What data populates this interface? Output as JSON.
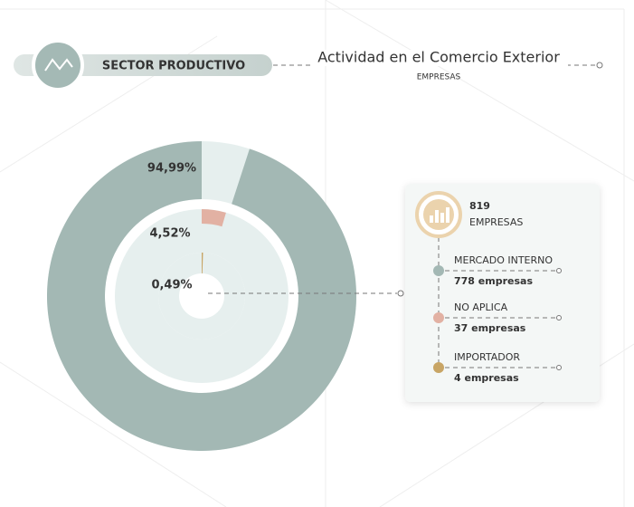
{
  "header": {
    "section": "SECTOR PRODUCTIVO",
    "title": "Actividad en el Comercio Exterior",
    "subtitle": "EMPRESAS"
  },
  "chart_data": {
    "type": "rings",
    "categories": [
      "MERCADO INTERNO",
      "NO APLICA",
      "IMPORTADOR"
    ],
    "values": [
      94.99,
      4.52,
      0.49
    ],
    "value_labels": [
      "94,99%",
      "4,52%",
      "0,49%"
    ],
    "colors": [
      "#a3b8b4",
      "#e2b1a3",
      "#c8a565"
    ],
    "track_color": "#e6efee"
  },
  "card": {
    "total": "819",
    "total_label": "EMPRESAS",
    "items": [
      {
        "name": "MERCADO INTERNO",
        "count": "778 empresas"
      },
      {
        "name": "NO APLICA",
        "count": "37 empresas"
      },
      {
        "name": "IMPORTADOR",
        "count": "4 empresas"
      }
    ]
  }
}
